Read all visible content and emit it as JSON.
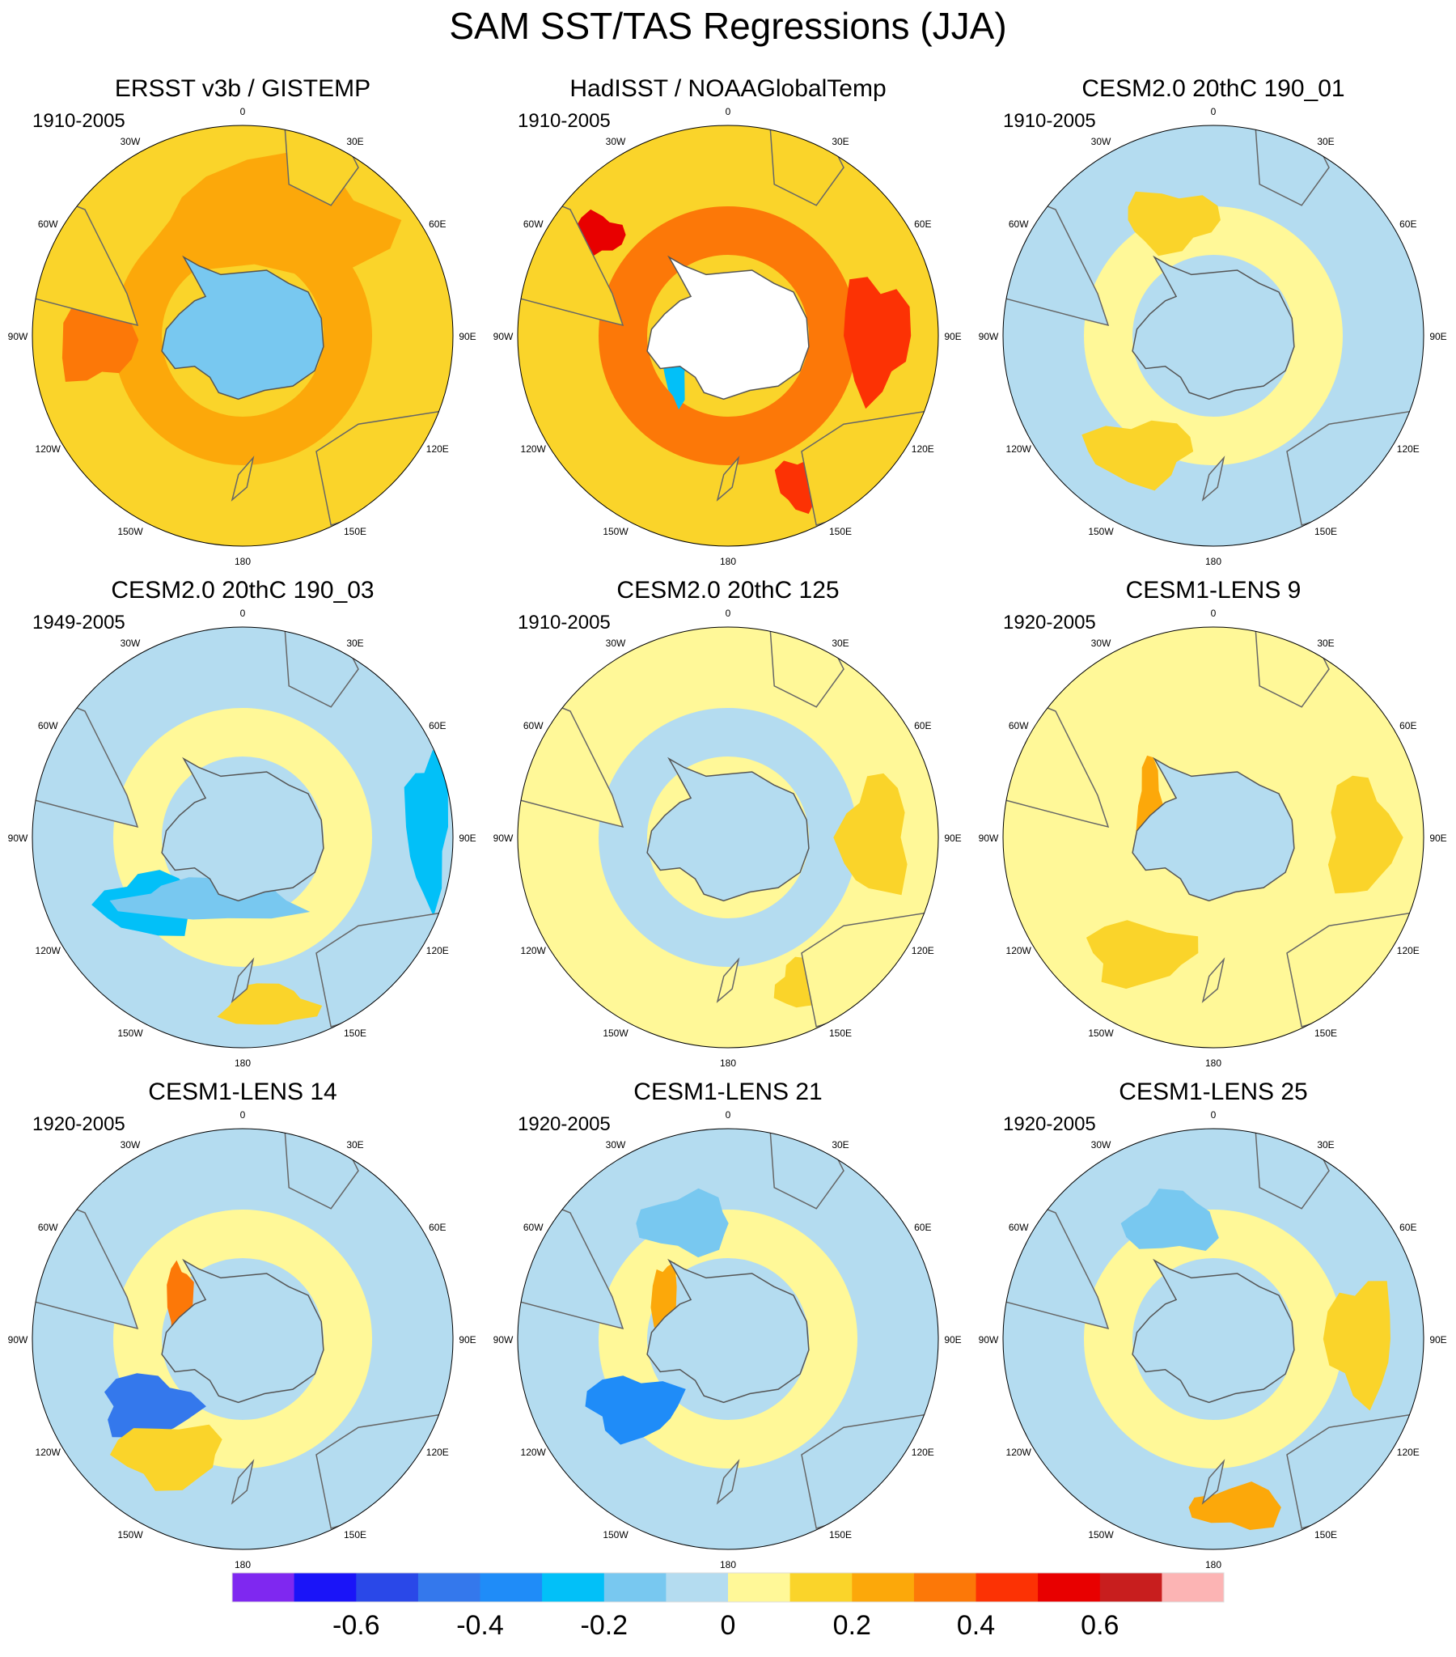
{
  "chart_data": {
    "type": "map",
    "title": "SAM SST/TAS Regressions (JJA)",
    "projection": "south-polar-stereographic",
    "lon_labels": [
      "0",
      "30E",
      "60E",
      "90E",
      "120E",
      "150E",
      "180",
      "150W",
      "120W",
      "90W",
      "60W",
      "30W"
    ],
    "panels": [
      {
        "title": "ERSST v3b / GISTEMP",
        "period": "1910-2005",
        "background_value": 0.15,
        "ocean_ring_value": 0.25,
        "antarctic_value": -0.15,
        "features": [
          {
            "value": 0.25,
            "region": "South Atlantic / Indian Ocean"
          },
          {
            "value": 0.35,
            "region": "Southeast Pacific off Chile"
          },
          {
            "value": -0.15,
            "region": "Antarctic interior"
          }
        ]
      },
      {
        "title": "HadISST / NOAAGlobalTemp",
        "period": "1910-2005",
        "background_value": 0.15,
        "ocean_ring_value": 0.35,
        "antarctic_value": null,
        "features": [
          {
            "value": 0.55,
            "region": "South Atlantic near South America"
          },
          {
            "value": 0.45,
            "region": "Southern Indian Ocean"
          },
          {
            "value": 0.45,
            "region": "Tasman Sea"
          },
          {
            "value": -0.25,
            "region": "Ross Sea edge"
          }
        ]
      },
      {
        "title": "CESM2.0 20thC 190_01",
        "period": "1910-2005",
        "background_value": -0.05,
        "ocean_ring_value": 0.05,
        "antarctic_value": -0.05,
        "features": [
          {
            "value": 0.15,
            "region": "South Atlantic"
          },
          {
            "value": 0.15,
            "region": "South Pacific"
          }
        ]
      },
      {
        "title": "CESM2.0 20thC 190_03",
        "period": "1949-2005",
        "background_value": -0.05,
        "ocean_ring_value": 0.05,
        "antarctic_value": -0.05,
        "features": [
          {
            "value": -0.25,
            "region": "Indian Ocean east"
          },
          {
            "value": -0.25,
            "region": "Southeast Pacific"
          },
          {
            "value": -0.15,
            "region": "Southern Pacific band"
          },
          {
            "value": 0.15,
            "region": "New Zealand region"
          }
        ]
      },
      {
        "title": "CESM2.0 20thC 125",
        "period": "1910-2005",
        "background_value": 0.05,
        "ocean_ring_value": -0.05,
        "antarctic_value": -0.05,
        "features": [
          {
            "value": 0.15,
            "region": "Southern Indian Ocean"
          },
          {
            "value": 0.15,
            "region": "Tasman Sea"
          }
        ]
      },
      {
        "title": "CESM1-LENS 9",
        "period": "1920-2005",
        "background_value": 0.05,
        "ocean_ring_value": 0.05,
        "antarctic_value": -0.05,
        "features": [
          {
            "value": 0.25,
            "region": "Drake Passage"
          },
          {
            "value": 0.15,
            "region": "Southern Indian Ocean"
          },
          {
            "value": 0.15,
            "region": "South Pacific"
          }
        ]
      },
      {
        "title": "CESM1-LENS 14",
        "period": "1920-2005",
        "background_value": -0.05,
        "ocean_ring_value": 0.05,
        "antarctic_value": -0.05,
        "features": [
          {
            "value": -0.45,
            "region": "Southeast Pacific"
          },
          {
            "value": 0.35,
            "region": "Drake Passage"
          },
          {
            "value": 0.15,
            "region": "South Pacific"
          }
        ]
      },
      {
        "title": "CESM1-LENS 21",
        "period": "1920-2005",
        "background_value": -0.05,
        "ocean_ring_value": 0.05,
        "antarctic_value": -0.05,
        "features": [
          {
            "value": -0.35,
            "region": "Southeast Pacific"
          },
          {
            "value": 0.25,
            "region": "Drake Passage"
          },
          {
            "value": -0.15,
            "region": "South Atlantic"
          }
        ]
      },
      {
        "title": "CESM1-LENS 25",
        "period": "1920-2005",
        "background_value": -0.05,
        "ocean_ring_value": 0.05,
        "antarctic_value": -0.05,
        "features": [
          {
            "value": 0.15,
            "region": "Southern Indian Ocean"
          },
          {
            "value": 0.25,
            "region": "New Zealand region"
          },
          {
            "value": -0.15,
            "region": "South Atlantic"
          }
        ]
      }
    ],
    "colorbar": {
      "colors": [
        "#7f28f0",
        "#1a14f8",
        "#2a48e8",
        "#3478ec",
        "#1f8cf8",
        "#02c0f8",
        "#78c8f0",
        "#b4dcf0",
        "#fff898",
        "#fad42a",
        "#fca80a",
        "#fc7808",
        "#fc3204",
        "#e80000",
        "#c81e1e",
        "#fcb4b4"
      ],
      "tick_labels": [
        "-0.6",
        "-0.4",
        "-0.2",
        "0",
        "0.2",
        "0.4",
        "0.6"
      ],
      "tick_values": [
        -0.6,
        -0.4,
        -0.2,
        0,
        0.2,
        0.4,
        0.6
      ],
      "bounds": [
        -0.7,
        -0.6,
        -0.5,
        -0.4,
        -0.3,
        -0.2,
        -0.1,
        0,
        0.1,
        0.2,
        0.3,
        0.4,
        0.5,
        0.6,
        0.7
      ]
    }
  }
}
